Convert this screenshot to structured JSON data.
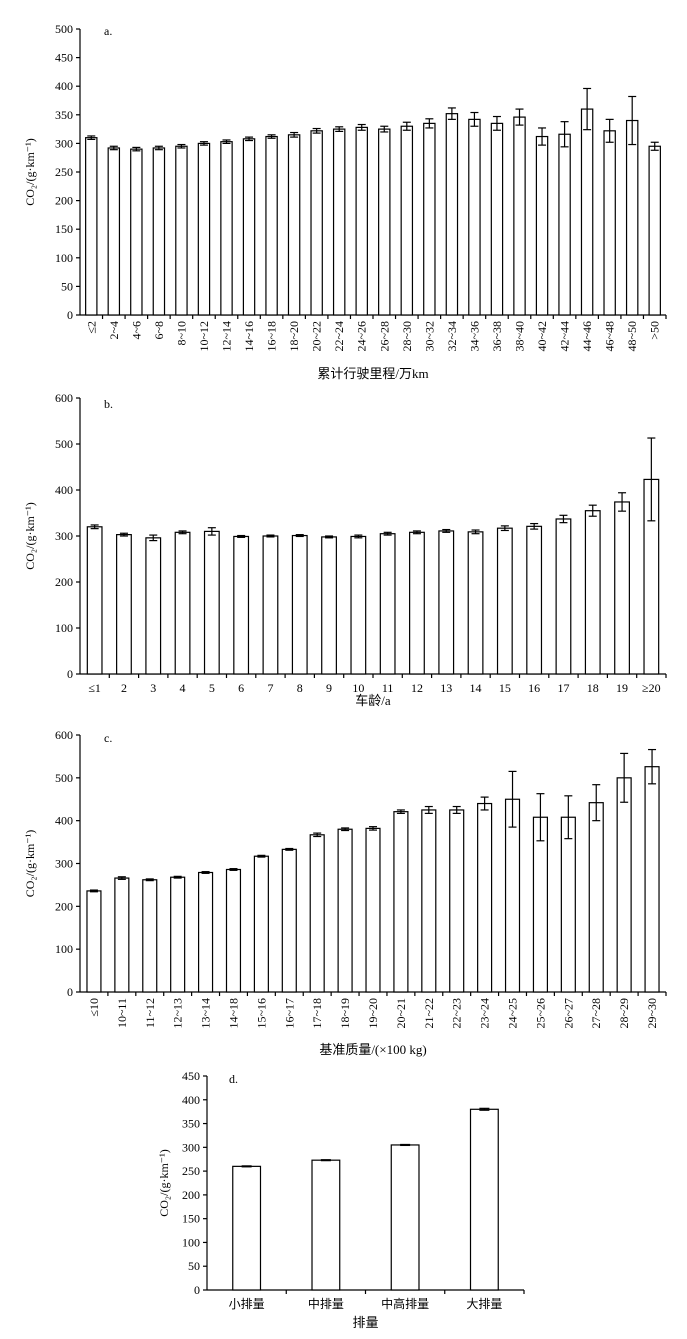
{
  "chart_data": [
    {
      "type": "bar",
      "panel": "a.",
      "xlabel": "累计行驶里程/万km",
      "ylabel": "CO₂/(g·km⁻¹)",
      "ylim": [
        0,
        500
      ],
      "yticks": [
        0,
        50,
        100,
        150,
        200,
        250,
        300,
        350,
        400,
        450,
        500
      ],
      "tick_rotation": "vertical",
      "categories": [
        "≤2",
        "2~4",
        "4~6",
        "6~8",
        "8~10",
        "10~12",
        "12~14",
        "14~16",
        "16~18",
        "18~20",
        "20~22",
        "22~24",
        "24~26",
        "26~28",
        "28~30",
        "30~32",
        "32~34",
        "34~36",
        "36~38",
        "38~40",
        "40~42",
        "42~44",
        "44~46",
        "46~48",
        "48~50",
        ">50"
      ],
      "values": [
        310,
        292,
        290,
        292,
        295,
        300,
        303,
        308,
        312,
        315,
        322,
        325,
        328,
        325,
        330,
        335,
        352,
        342,
        335,
        346,
        312,
        316,
        360,
        322,
        340,
        295
      ],
      "errors": [
        3,
        3,
        3,
        3,
        3,
        3,
        3,
        3,
        3,
        4,
        4,
        4,
        5,
        5,
        7,
        8,
        10,
        12,
        12,
        14,
        15,
        22,
        36,
        20,
        42,
        7
      ]
    },
    {
      "type": "bar",
      "panel": "b.",
      "xlabel": "车龄/a",
      "ylabel": "CO₂/(g·km⁻¹)",
      "ylim": [
        0,
        600
      ],
      "yticks": [
        0,
        100,
        200,
        300,
        400,
        500,
        600
      ],
      "tick_rotation": "horizontal",
      "categories": [
        "≤1",
        "2",
        "3",
        "4",
        "5",
        "6",
        "7",
        "8",
        "9",
        "10",
        "11",
        "12",
        "13",
        "14",
        "15",
        "16",
        "17",
        "18",
        "19",
        "≥20"
      ],
      "values": [
        320,
        303,
        296,
        308,
        310,
        299,
        300,
        301,
        298,
        299,
        305,
        308,
        311,
        309,
        317,
        321,
        337,
        355,
        374,
        423
      ],
      "errors": [
        4,
        3,
        6,
        3,
        8,
        2,
        2,
        2,
        2,
        3,
        3,
        3,
        3,
        4,
        5,
        6,
        8,
        12,
        20,
        90
      ]
    },
    {
      "type": "bar",
      "panel": "c.",
      "xlabel": "基准质量/(×100 kg)",
      "ylabel": "CO₂/(g·km⁻¹)",
      "ylim": [
        0,
        600
      ],
      "yticks": [
        0,
        100,
        200,
        300,
        400,
        500,
        600
      ],
      "tick_rotation": "vertical",
      "categories": [
        "≤10",
        "10~11",
        "11~12",
        "12~13",
        "13~14",
        "14~18",
        "15~16",
        "16~17",
        "17~18",
        "18~19",
        "19~20",
        "20~21",
        "21~22",
        "22~23",
        "23~24",
        "24~25",
        "25~26",
        "26~27",
        "27~28",
        "28~29",
        "29~30"
      ],
      "values": [
        236,
        266,
        262,
        268,
        279,
        286,
        317,
        333,
        367,
        380,
        382,
        421,
        425,
        425,
        440,
        450,
        408,
        408,
        442,
        500,
        526
      ],
      "errors": [
        2,
        3,
        2,
        2,
        2,
        2,
        2,
        2,
        4,
        3,
        4,
        4,
        8,
        8,
        15,
        65,
        55,
        50,
        42,
        57,
        40
      ]
    },
    {
      "type": "bar",
      "panel": "d.",
      "xlabel": "排量",
      "ylabel": "CO₂/(g·km⁻¹)",
      "ylim": [
        0,
        450
      ],
      "yticks": [
        0,
        50,
        100,
        150,
        200,
        250,
        300,
        350,
        400,
        450
      ],
      "tick_rotation": "horizontal",
      "categories": [
        "小排量",
        "中排量",
        "中高排量",
        "大排量"
      ],
      "values": [
        260,
        273,
        305,
        380
      ],
      "errors": [
        1,
        1,
        1,
        2
      ]
    }
  ]
}
